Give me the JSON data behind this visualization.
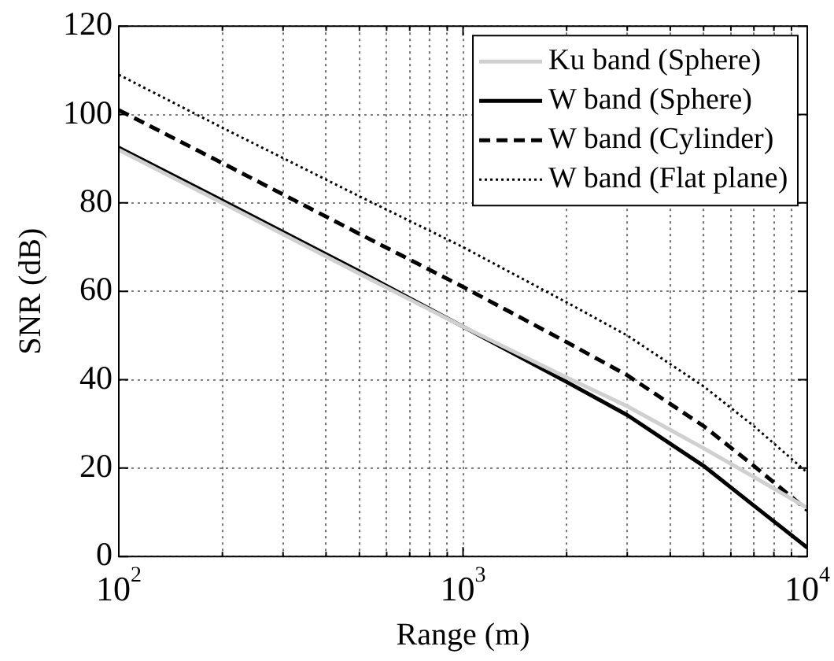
{
  "chart_data": {
    "type": "line",
    "xlabel": "Range (m)",
    "ylabel": "SNR (dB)",
    "log": "x",
    "xlim": [
      100,
      10000
    ],
    "ylim": [
      0,
      120
    ],
    "xticks": [
      {
        "value": 100,
        "label": "10$^{2}$"
      },
      {
        "value": 200,
        "label": null
      },
      {
        "value": 300,
        "label": null
      },
      {
        "value": 400,
        "label": null
      },
      {
        "value": 500,
        "label": null
      },
      {
        "value": 600,
        "label": null
      },
      {
        "value": 700,
        "label": null
      },
      {
        "value": 800,
        "label": null
      },
      {
        "value": 900,
        "label": null
      },
      {
        "value": 1000,
        "label": "10$^{3}$"
      },
      {
        "value": 2000,
        "label": null
      },
      {
        "value": 3000,
        "label": null
      },
      {
        "value": 4000,
        "label": null
      },
      {
        "value": 5000,
        "label": null
      },
      {
        "value": 6000,
        "label": null
      },
      {
        "value": 7000,
        "label": null
      },
      {
        "value": 8000,
        "label": null
      },
      {
        "value": 9000,
        "label": null
      },
      {
        "value": 10000,
        "label": "10$^{4}$"
      }
    ],
    "yticks": [
      0,
      20,
      40,
      60,
      80,
      100,
      120
    ],
    "grid": true,
    "legend": "top right",
    "marker": "none",
    "x": [
      100,
      200,
      500,
      1000,
      2000,
      3000,
      5000,
      7000,
      10000
    ],
    "series": [
      {
        "name": "Ku band (Sphere)",
        "color": "#d0d0d0",
        "line_style": "solid",
        "values": [
          92,
          80,
          64,
          52,
          40.5,
          34,
          24.5,
          18,
          11
        ]
      },
      {
        "name": "W band (Sphere)",
        "color": "#000000",
        "line_style": "solid",
        "values": [
          92.5,
          80.5,
          64.5,
          52,
          39.5,
          32,
          20.5,
          11.5,
          2
        ]
      },
      {
        "name": "W band (Cylinder)",
        "color": "#000000",
        "line_style": "dashed",
        "values": [
          101,
          89,
          73,
          61,
          48.5,
          41,
          29.5,
          20.5,
          10.5
        ]
      },
      {
        "name": "W band (Flat plane)",
        "color": "#000000",
        "line_style": "dotted",
        "values": [
          109,
          97,
          81.5,
          70,
          57.5,
          50,
          38.5,
          29.5,
          19
        ]
      }
    ]
  }
}
